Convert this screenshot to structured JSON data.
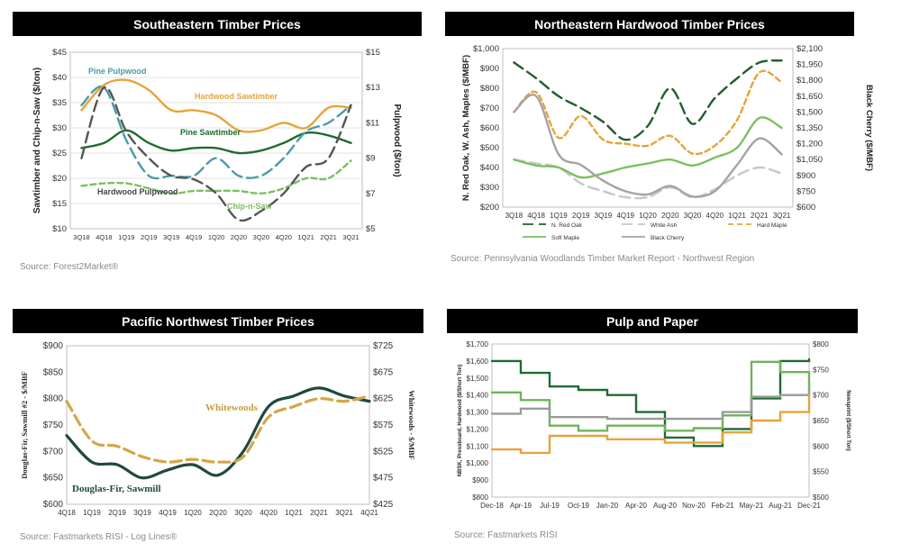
{
  "chart_data": [
    {
      "type": "line",
      "title": "Southeastern Timber Prices",
      "source": "Source: Forest2Market®",
      "ylabel": "Sawtimber and Chip-n-Saw ($/ton)",
      "y2label": "Pulpwood ($/ton)",
      "ylim": [
        10,
        45
      ],
      "y2lim": [
        5,
        15
      ],
      "yticks": [
        "$10",
        "$15",
        "$20",
        "$25",
        "$30",
        "$35",
        "$40",
        "$45"
      ],
      "y2ticks": [
        "$5",
        "$7",
        "$9",
        "$11",
        "$13",
        "$15"
      ],
      "categories": [
        "3Q18",
        "4Q18",
        "1Q19",
        "2Q19",
        "3Q19",
        "4Q19",
        "1Q20",
        "2Q20",
        "3Q20",
        "4Q20",
        "1Q21",
        "2Q21",
        "3Q21"
      ],
      "series": [
        {
          "name": "Hardwood Sawtimber",
          "axis": "left",
          "color": "#e8a33a",
          "dash": "solid",
          "values": [
            33.5,
            38.5,
            39.5,
            37.5,
            33.5,
            33.5,
            32.5,
            29.5,
            29.5,
            31,
            30,
            34,
            34
          ]
        },
        {
          "name": "Pine Sawtimber",
          "axis": "left",
          "color": "#1f6b2e",
          "dash": "solid",
          "values": [
            26,
            27,
            29.5,
            27,
            25.5,
            26,
            26,
            25,
            25.5,
            27,
            29,
            28.5,
            27
          ]
        },
        {
          "name": "Chip-n-Saw",
          "axis": "left",
          "color": "#7cbf62",
          "dash": "dash",
          "values": [
            18.5,
            19,
            19,
            18,
            17,
            17.5,
            17.5,
            17.5,
            17,
            18,
            20,
            20,
            23.5
          ]
        },
        {
          "name": "Pine Pulpwood",
          "axis": "right",
          "color": "#4a9aa8",
          "dash": "longdash",
          "values": [
            12,
            13,
            10,
            8,
            8,
            8,
            9,
            8,
            8,
            9,
            10.5,
            11,
            12
          ]
        },
        {
          "name": "Hardwood Pulpwood",
          "axis": "right",
          "color": "#555555",
          "dash": "longdash",
          "values": [
            9,
            13,
            10.5,
            9,
            8,
            7.8,
            7,
            5.5,
            6,
            7,
            8.5,
            9,
            12
          ]
        }
      ],
      "labels": {
        "pine_pulpwood": "Pine Pulpwood",
        "hardwood_sawtimber": "Hardwood Sawtimber",
        "pine_sawtimber": "Pine Sawtimber",
        "hardwood_pulpwood": "Hardwood Pulpwood",
        "chip_n_saw": "Chip-n-Saw"
      }
    },
    {
      "type": "line",
      "title": "Northeastern Hardwood Timber Prices",
      "source": "Source: Pennsylvania Woodlands Timber Market Report - Northwest Region",
      "ylabel": "N. Red Oak, W. Ash, Maples ($/MBF)",
      "y2label": "Black Cherry ($/MBF)",
      "ylim": [
        200,
        1000
      ],
      "y2lim": [
        600,
        2100
      ],
      "yticks": [
        "$200",
        "$300",
        "$400",
        "$500",
        "$600",
        "$700",
        "$800",
        "$900",
        "$1,000"
      ],
      "y2ticks": [
        "$600",
        "$750",
        "$900",
        "$1,050",
        "$1,200",
        "$1,350",
        "$1,500",
        "$1,650",
        "$1,800",
        "$1,950",
        "$2,100"
      ],
      "categories": [
        "3Q18",
        "4Q18",
        "1Q19",
        "2Q19",
        "3Q19",
        "4Q19",
        "1Q20",
        "2Q20",
        "3Q20",
        "4Q20",
        "1Q21",
        "2Q21",
        "3Q21"
      ],
      "series": [
        {
          "name": "N. Red Oak",
          "axis": "left",
          "color": "#1f5f2e",
          "dash": "longdash",
          "values": [
            930,
            850,
            760,
            700,
            630,
            540,
            610,
            800,
            620,
            750,
            850,
            930,
            940
          ]
        },
        {
          "name": "White Ash",
          "axis": "left",
          "color": "#c7c7c7",
          "dash": "longdash",
          "values": [
            440,
            420,
            400,
            320,
            280,
            250,
            250,
            300,
            250,
            290,
            360,
            400,
            370
          ]
        },
        {
          "name": "Hard Maple",
          "axis": "left",
          "color": "#e8a33a",
          "dash": "dash",
          "values": [
            680,
            780,
            550,
            660,
            540,
            520,
            510,
            560,
            470,
            510,
            640,
            880,
            830
          ]
        },
        {
          "name": "Soft Maple",
          "axis": "left",
          "color": "#7cbf62",
          "dash": "solid",
          "values": [
            440,
            410,
            400,
            350,
            370,
            400,
            420,
            440,
            410,
            450,
            500,
            650,
            600
          ]
        },
        {
          "name": "Black Cherry",
          "axis": "right",
          "color": "#a3a3a3",
          "dash": "solid",
          "values": [
            1500,
            1650,
            1100,
            1000,
            850,
            750,
            720,
            800,
            700,
            750,
            1000,
            1250,
            1100
          ]
        }
      ],
      "legend": [
        "N. Red Oak",
        "White Ash",
        "Hard Maple",
        "Soft Maple",
        "Black Cherry"
      ]
    },
    {
      "type": "line",
      "title": "Pacific Northwest Timber Prices",
      "source": "Source: Fastmarkets RISI - Log Lines®",
      "ylabel": "Douglas-Fir, Sawmill #2 - $/MBF",
      "y2label": "Whitewoods - $/MBF",
      "ylim": [
        600,
        900
      ],
      "y2lim": [
        425,
        725
      ],
      "yticks": [
        "$600",
        "$650",
        "$700",
        "$750",
        "$800",
        "$850",
        "$900"
      ],
      "y2ticks": [
        "$425",
        "$475",
        "$525",
        "$575",
        "$625",
        "$675",
        "$725"
      ],
      "categories": [
        "4Q18",
        "1Q19",
        "2Q19",
        "3Q19",
        "4Q19",
        "1Q20",
        "2Q20",
        "3Q20",
        "4Q20",
        "1Q21",
        "2Q21",
        "3Q21",
        "4Q21"
      ],
      "series": [
        {
          "name": "Douglas-Fir, Sawmill",
          "axis": "left",
          "color": "#1f4a3e",
          "dash": "solid",
          "values": [
            730,
            680,
            675,
            650,
            665,
            675,
            655,
            700,
            785,
            805,
            820,
            805,
            795
          ]
        },
        {
          "name": "Whitewoods",
          "axis": "right",
          "color": "#d4a64a",
          "dash": "longdash",
          "values": [
            620,
            545,
            535,
            515,
            505,
            510,
            505,
            515,
            590,
            610,
            625,
            620,
            630
          ]
        }
      ],
      "labels": {
        "whitewoods": "Whitewoods",
        "douglas": "Douglas-Fir, Sawmill"
      }
    },
    {
      "type": "line",
      "title": "Pulp and Paper",
      "source": "Source: Fastmarkets RISI",
      "ylabel": "NBSK, Pressboard, Hardwood ($/Short Ton)",
      "y2label": "Newsprint ($/Short Ton)",
      "ylim": [
        800,
        1700
      ],
      "y2lim": [
        500,
        800
      ],
      "yticks": [
        "$800",
        "$900",
        "$1,000",
        "$1,100",
        "$1,200",
        "$1,300",
        "$1,400",
        "$1,500",
        "$1,600",
        "$1,700"
      ],
      "y2ticks": [
        "$500",
        "$550",
        "$600",
        "$650",
        "$700",
        "$750",
        "$800"
      ],
      "categories": [
        "Dec-18",
        "Apr-19",
        "Jul-19",
        "Oct-19",
        "Jan-20",
        "Apr-20",
        "Aug-20",
        "Nov-20",
        "Feb-21",
        "May-21",
        "Aug-21",
        "Dec-21"
      ],
      "series": [
        {
          "name": "NBSK",
          "axis": "left",
          "color": "#1f6b2e",
          "dash": "solid",
          "values": [
            1600,
            1530,
            1450,
            1430,
            1400,
            1300,
            1150,
            1100,
            1200,
            1380,
            1600,
            1610
          ]
        },
        {
          "name": "Newsprint",
          "axis": "right",
          "color": "#6fb35a",
          "dash": "solid",
          "values": [
            705,
            690,
            640,
            630,
            640,
            640,
            630,
            635,
            660,
            765,
            745,
            700
          ]
        },
        {
          "name": "Pressboard",
          "axis": "left",
          "color": "#9a9a9a",
          "dash": "solid",
          "values": [
            1290,
            1320,
            1270,
            1270,
            1260,
            1260,
            1260,
            1260,
            1300,
            1390,
            1400,
            1440
          ]
        },
        {
          "name": "Hardwood",
          "axis": "left",
          "color": "#e8a33a",
          "dash": "solid",
          "values": [
            1080,
            1060,
            1160,
            1160,
            1140,
            1140,
            1120,
            1120,
            1180,
            1250,
            1300,
            1400
          ]
        }
      ]
    }
  ]
}
